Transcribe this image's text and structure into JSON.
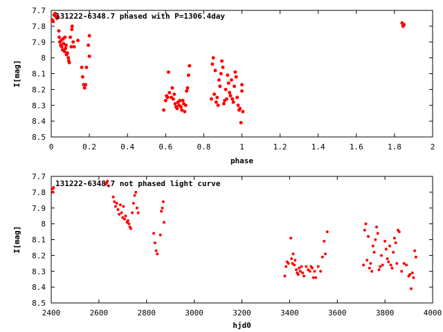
{
  "chart_data": [
    {
      "type": "scatter",
      "title": "131222-6348.7 phased with P=1306.4day",
      "xlabel": "phase",
      "ylabel": "I[mag]",
      "xlim": [
        0,
        2
      ],
      "ylim": [
        8.5,
        7.7
      ],
      "y_reversed": true,
      "grid": false,
      "legend": "none",
      "marker_color": "#ff0000",
      "xticks": [
        "0",
        "0.2",
        "0.4",
        "0.6",
        "0.8",
        "1",
        "1.2",
        "1.4",
        "1.6",
        "1.8",
        "2"
      ],
      "yticks": [
        "7.7",
        "7.8",
        "7.9",
        "8",
        "8.1",
        "8.2",
        "8.3",
        "8.4",
        "8.5"
      ],
      "points": [
        [
          0.005,
          7.76
        ],
        [
          0.01,
          7.77
        ],
        [
          0.015,
          7.73
        ],
        [
          0.02,
          7.72
        ],
        [
          0.025,
          7.74
        ],
        [
          0.03,
          7.75
        ],
        [
          0.035,
          7.74
        ],
        [
          0.04,
          7.83
        ],
        [
          0.042,
          7.87
        ],
        [
          0.045,
          7.9
        ],
        [
          0.05,
          7.92
        ],
        [
          0.052,
          7.89
        ],
        [
          0.055,
          7.93
        ],
        [
          0.06,
          7.95
        ],
        [
          0.062,
          7.88
        ],
        [
          0.065,
          7.91
        ],
        [
          0.07,
          7.96
        ],
        [
          0.072,
          7.87
        ],
        [
          0.075,
          7.94
        ],
        [
          0.078,
          7.92
        ],
        [
          0.08,
          7.98
        ],
        [
          0.085,
          7.97
        ],
        [
          0.09,
          8.0
        ],
        [
          0.092,
          8.02
        ],
        [
          0.095,
          8.03
        ],
        [
          0.1,
          7.87
        ],
        [
          0.105,
          7.93
        ],
        [
          0.108,
          7.82
        ],
        [
          0.11,
          7.8
        ],
        [
          0.115,
          7.9
        ],
        [
          0.12,
          7.93
        ],
        [
          0.14,
          7.89
        ],
        [
          0.16,
          8.06
        ],
        [
          0.165,
          8.12
        ],
        [
          0.17,
          8.17
        ],
        [
          0.175,
          8.19
        ],
        [
          0.18,
          8.17
        ],
        [
          0.185,
          8.06
        ],
        [
          0.195,
          7.92
        ],
        [
          0.2,
          7.86
        ],
        [
          0.2,
          7.99
        ],
        [
          0.59,
          8.33
        ],
        [
          0.6,
          8.27
        ],
        [
          0.605,
          8.24
        ],
        [
          0.61,
          8.25
        ],
        [
          0.615,
          8.09
        ],
        [
          0.62,
          8.22
        ],
        [
          0.63,
          8.25
        ],
        [
          0.635,
          8.19
        ],
        [
          0.64,
          8.26
        ],
        [
          0.645,
          8.23
        ],
        [
          0.65,
          8.29
        ],
        [
          0.655,
          8.31
        ],
        [
          0.66,
          8.32
        ],
        [
          0.665,
          8.28
        ],
        [
          0.67,
          8.3
        ],
        [
          0.675,
          8.27
        ],
        [
          0.68,
          8.31
        ],
        [
          0.685,
          8.33
        ],
        [
          0.69,
          8.27
        ],
        [
          0.695,
          8.29
        ],
        [
          0.7,
          8.34
        ],
        [
          0.705,
          8.3
        ],
        [
          0.71,
          8.21
        ],
        [
          0.715,
          8.19
        ],
        [
          0.72,
          8.11
        ],
        [
          0.725,
          8.05
        ],
        [
          0.84,
          8.26
        ],
        [
          0.845,
          8.04
        ],
        [
          0.85,
          8.0
        ],
        [
          0.855,
          8.23
        ],
        [
          0.86,
          8.08
        ],
        [
          0.865,
          8.28
        ],
        [
          0.87,
          8.25
        ],
        [
          0.875,
          8.3
        ],
        [
          0.88,
          8.14
        ],
        [
          0.885,
          8.18
        ],
        [
          0.89,
          8.1
        ],
        [
          0.895,
          8.02
        ],
        [
          0.9,
          8.06
        ],
        [
          0.905,
          8.29
        ],
        [
          0.91,
          8.27
        ],
        [
          0.915,
          8.2
        ],
        [
          0.92,
          8.26
        ],
        [
          0.925,
          8.11
        ],
        [
          0.93,
          8.16
        ],
        [
          0.935,
          8.22
        ],
        [
          0.94,
          8.24
        ],
        [
          0.945,
          8.14
        ],
        [
          0.95,
          8.26
        ],
        [
          0.955,
          8.28
        ],
        [
          0.96,
          8.18
        ],
        [
          0.965,
          8.09
        ],
        [
          0.97,
          8.12
        ],
        [
          0.975,
          8.25
        ],
        [
          0.98,
          8.3
        ],
        [
          0.985,
          8.33
        ],
        [
          0.99,
          8.32
        ],
        [
          0.995,
          8.41
        ],
        [
          1.0,
          8.17
        ],
        [
          1.0,
          8.21
        ],
        [
          1.005,
          8.34
        ],
        [
          1.84,
          7.78
        ],
        [
          1.845,
          7.8
        ],
        [
          1.85,
          7.79
        ]
      ]
    },
    {
      "type": "scatter",
      "title": "131222-6348.7 not phased light curve",
      "xlabel": "hjd0",
      "ylabel": "I[mag]",
      "xlim": [
        2400,
        4000
      ],
      "ylim": [
        8.5,
        7.7
      ],
      "y_reversed": true,
      "grid": false,
      "legend": "none",
      "marker_color": "#ff0000",
      "xticks": [
        "2400",
        "2600",
        "2800",
        "3000",
        "3200",
        "3400",
        "3600",
        "3800",
        "4000"
      ],
      "yticks": [
        "7.7",
        "7.8",
        "7.9",
        "8",
        "8.1",
        "8.2",
        "8.3",
        "8.4",
        "8.5"
      ],
      "points": [
        [
          2405,
          7.78
        ],
        [
          2407,
          7.8
        ],
        [
          2410,
          7.77
        ],
        [
          2628,
          7.75
        ],
        [
          2633,
          7.74
        ],
        [
          2636,
          7.73
        ],
        [
          2641,
          7.76
        ],
        [
          2660,
          7.83
        ],
        [
          2665,
          7.86
        ],
        [
          2670,
          7.89
        ],
        [
          2675,
          7.87
        ],
        [
          2680,
          7.91
        ],
        [
          2685,
          7.94
        ],
        [
          2690,
          7.88
        ],
        [
          2695,
          7.93
        ],
        [
          2700,
          7.96
        ],
        [
          2703,
          7.89
        ],
        [
          2708,
          7.97
        ],
        [
          2712,
          7.95
        ],
        [
          2718,
          7.99
        ],
        [
          2722,
          7.98
        ],
        [
          2726,
          8.0
        ],
        [
          2730,
          8.02
        ],
        [
          2734,
          8.03
        ],
        [
          2740,
          7.93
        ],
        [
          2745,
          7.87
        ],
        [
          2750,
          7.82
        ],
        [
          2755,
          7.8
        ],
        [
          2760,
          7.9
        ],
        [
          2765,
          7.93
        ],
        [
          2830,
          8.06
        ],
        [
          2835,
          8.12
        ],
        [
          2840,
          8.17
        ],
        [
          2845,
          8.19
        ],
        [
          2858,
          8.07
        ],
        [
          2862,
          7.92
        ],
        [
          2866,
          7.9
        ],
        [
          2870,
          7.86
        ],
        [
          2873,
          7.99
        ],
        [
          3380,
          8.33
        ],
        [
          3385,
          8.27
        ],
        [
          3390,
          8.24
        ],
        [
          3395,
          8.25
        ],
        [
          3405,
          8.09
        ],
        [
          3408,
          8.22
        ],
        [
          3412,
          8.25
        ],
        [
          3415,
          8.19
        ],
        [
          3420,
          8.26
        ],
        [
          3423,
          8.23
        ],
        [
          3428,
          8.29
        ],
        [
          3432,
          8.31
        ],
        [
          3436,
          8.32
        ],
        [
          3440,
          8.28
        ],
        [
          3445,
          8.3
        ],
        [
          3450,
          8.27
        ],
        [
          3455,
          8.31
        ],
        [
          3460,
          8.33
        ],
        [
          3470,
          8.27
        ],
        [
          3478,
          8.29
        ],
        [
          3485,
          8.3
        ],
        [
          3490,
          8.27
        ],
        [
          3495,
          8.28
        ],
        [
          3500,
          8.34
        ],
        [
          3505,
          8.3
        ],
        [
          3510,
          8.34
        ],
        [
          3520,
          8.27
        ],
        [
          3530,
          8.3
        ],
        [
          3538,
          8.21
        ],
        [
          3545,
          8.11
        ],
        [
          3550,
          8.19
        ],
        [
          3558,
          8.05
        ],
        [
          3710,
          8.26
        ],
        [
          3715,
          8.04
        ],
        [
          3720,
          8.0
        ],
        [
          3725,
          8.23
        ],
        [
          3730,
          8.08
        ],
        [
          3735,
          8.28
        ],
        [
          3740,
          8.25
        ],
        [
          3745,
          8.3
        ],
        [
          3750,
          8.14
        ],
        [
          3755,
          8.18
        ],
        [
          3760,
          8.1
        ],
        [
          3765,
          8.02
        ],
        [
          3770,
          8.06
        ],
        [
          3775,
          8.29
        ],
        [
          3780,
          8.27
        ],
        [
          3785,
          8.2
        ],
        [
          3790,
          8.26
        ],
        [
          3800,
          8.11
        ],
        [
          3805,
          8.16
        ],
        [
          3810,
          8.22
        ],
        [
          3815,
          8.24
        ],
        [
          3820,
          8.14
        ],
        [
          3825,
          8.26
        ],
        [
          3830,
          8.28
        ],
        [
          3835,
          8.18
        ],
        [
          3840,
          8.09
        ],
        [
          3845,
          8.12
        ],
        [
          3850,
          8.25
        ],
        [
          3855,
          8.04
        ],
        [
          3860,
          8.05
        ],
        [
          3870,
          8.3
        ],
        [
          3880,
          8.25
        ],
        [
          3890,
          8.26
        ],
        [
          3900,
          8.33
        ],
        [
          3905,
          8.32
        ],
        [
          3910,
          8.41
        ],
        [
          3915,
          8.31
        ],
        [
          3920,
          8.34
        ],
        [
          3925,
          8.17
        ],
        [
          3930,
          8.21
        ]
      ]
    }
  ]
}
